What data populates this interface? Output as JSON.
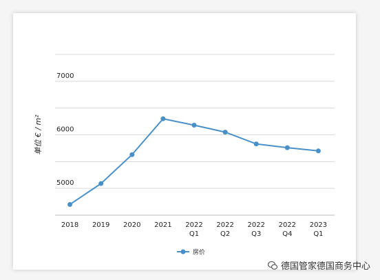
{
  "chart_data": {
    "type": "line",
    "categories": [
      "2018",
      "2019",
      "2020",
      "2021",
      "2022\nQ1",
      "2022\nQ2",
      "2022\nQ3",
      "2022\nQ4",
      "2023\nQ1"
    ],
    "series": [
      {
        "name": "房价",
        "values": [
          4700,
          5090,
          5630,
          6300,
          6180,
          6050,
          5830,
          5760,
          5700
        ],
        "color": "#4a90c8"
      }
    ],
    "ylabel": "单位 € / m²",
    "yticks": [
      5000,
      6000,
      7000
    ],
    "ylim": [
      4500,
      7500
    ],
    "grid": true,
    "legend": "bottom"
  },
  "watermark": {
    "text": "德国管家德国商务中心",
    "icon": "wechat-icon"
  }
}
